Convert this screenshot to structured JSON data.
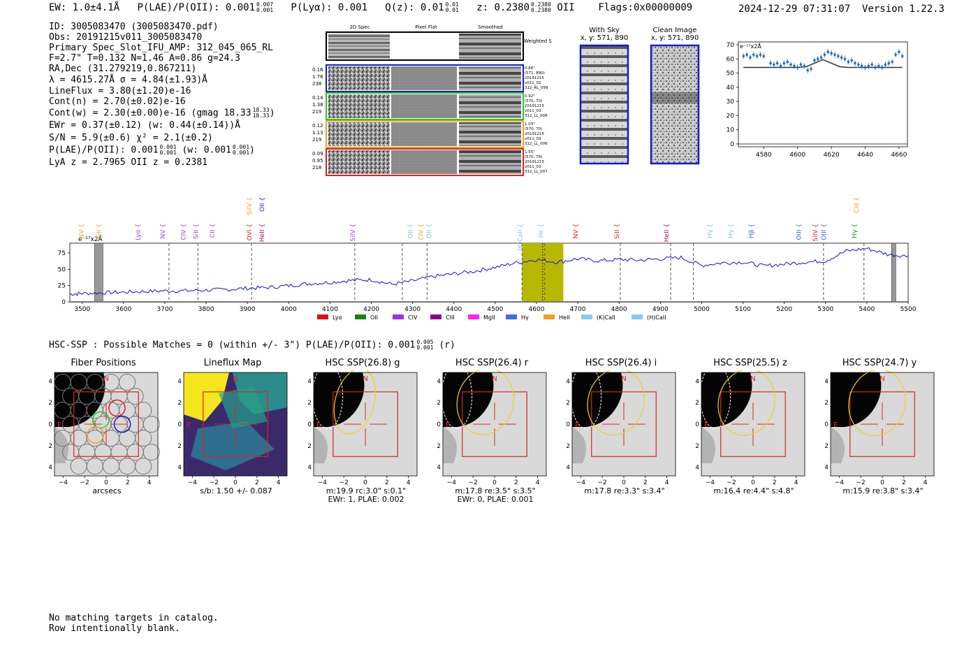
{
  "header": {
    "ew": "EW: 1.0±4.1",
    "ew_unit": "Å",
    "plae_label": "P(LAE)/P(OII): 0.001",
    "plae_hi": "0.007",
    "plae_lo": "0.001",
    "plya": "P(Lyα): 0.001",
    "qz": "Q(z): 0.01",
    "qz_hi": "0.01",
    "qz_lo": "0.01",
    "z": "z: 0.2380",
    "z_hi": "0.2380",
    "z_lo": "0.2380",
    "z_line": "OII",
    "flags": "Flags:0x00000009",
    "timestamp": "2024-12-29 07:31:07",
    "version": "Version 1.22.3"
  },
  "info": {
    "id": "ID: 3005083470 (3005083470.pdf)",
    "obs": "Obs: 20191215v011_3005083470",
    "primary": "Primary Spec_Slot_IFU_AMP: 312_045_065_RL",
    "fparams": "F=2.7\"  T=0.132  N=1.46  A=0.86  g=24.3",
    "radec": "RA,Dec (31.279219,0.867211)",
    "lambda": "λ = 4615.27Å  σ = 4.84(±1.93)Å",
    "lineflux": "LineFlux = 3.80(±1.20)e-16",
    "contn": "Cont(n) = 2.70(±0.02)e-16",
    "contw": "Cont(w) = 2.30(±0.00)e-16 (gmag 18.33",
    "contw_hi": "18.33",
    "contw_lo": "18.33",
    "ewr": "EWr = 0.37(±0.12) (w: 0.44(±0.14))Å",
    "sn": "S/N = 5.9(±0.6)  χ² = 2.1(±0.2)",
    "plae": "P(LAE)/P(OII): 0.001",
    "plae_hi": "0.001",
    "plae_lo": "0.001",
    "plae_w": "(w: 0.001",
    "plae_w_hi": "0.001",
    "plae_w_lo": "0.001",
    "lya_z": "LyA z = 2.7965   OII z = 0.2381"
  },
  "stamps": {
    "col_headers": [
      "2D Spec",
      "Pixel Flat",
      "Smoothed"
    ],
    "weighted_sum": "Weighted Sum",
    "rows": [
      {
        "color": "#1a1acc",
        "left": [
          "0.16",
          "1.76",
          "238"
        ],
        "right": [
          "0.66\"",
          "(571, 890)",
          "20191215",
          "v011_02",
          "312_RL_099"
        ]
      },
      {
        "color": "#22cc22",
        "left": [
          "0.14",
          "1.38",
          "219"
        ],
        "right": [
          "0.92\"",
          "(570, 70)",
          "20191215",
          "v011_03",
          "312_LL_006"
        ]
      },
      {
        "color": "#f0a020",
        "left": [
          "0.12",
          "1.13",
          "219"
        ],
        "right": [
          "1.03\"",
          "(570, 70)",
          "20191215",
          "v011_03",
          "312_LL_006"
        ]
      },
      {
        "color": "#dd2222",
        "left": [
          "0.09",
          "0.95",
          "218"
        ],
        "right": [
          "1.55\"",
          "(570, 79)",
          "20191215",
          "v011_03",
          "312_LL_007"
        ]
      }
    ]
  },
  "sky": {
    "with_sky_title": "With Sky",
    "with_sky_xy": "x, y: 571, 890",
    "clean_title": "Clean Image",
    "clean_xy": "x, y: 571, 890"
  },
  "zoom_plot": {
    "unit": "e⁻¹⁷x2Å",
    "yticks": [
      "70",
      "60",
      "50",
      "40",
      "30",
      "20",
      "10",
      "0"
    ],
    "xticks": [
      "4580",
      "4600",
      "4620",
      "4640",
      "4660"
    ]
  },
  "full_spectrum": {
    "unit": "e⁻¹⁷x2Å",
    "yticks": [
      "75",
      "50",
      "25",
      "0"
    ],
    "xticks": [
      "3500",
      "3600",
      "3700",
      "3800",
      "3900",
      "4000",
      "4100",
      "4200",
      "4300",
      "4400",
      "4500",
      "4600",
      "4700",
      "4800",
      "4900",
      "5000",
      "5100",
      "5200",
      "5300",
      "5400",
      "5500"
    ],
    "lines": [
      {
        "label": "NV",
        "color": "#f0a020",
        "x": 3503,
        "row": 0
      },
      {
        "label": "SiII",
        "color": "#f0a020",
        "x": 3545,
        "row": 0
      },
      {
        "label": "Lyα",
        "color": "#a040e0",
        "x": 3640,
        "row": 0
      },
      {
        "label": "NV",
        "color": "#a040e0",
        "x": 3700,
        "row": 0
      },
      {
        "label": "CIV",
        "color": "#a040e0",
        "x": 3750,
        "row": 0
      },
      {
        "label": "SiII",
        "color": "#a040e0",
        "x": 3780,
        "row": 0
      },
      {
        "label": "CII",
        "color": "#a040e0",
        "x": 3820,
        "row": 0
      },
      {
        "label": "OVI",
        "color": "#dd2222",
        "x": 3910,
        "row": 0
      },
      {
        "label": "SiIV",
        "color": "#f0a020",
        "x": 3910,
        "row": 1
      },
      {
        "label": "OII",
        "color": "#1a1acc",
        "x": 3940,
        "row": 1
      },
      {
        "label": "HeII",
        "color": "#a01060",
        "x": 3940,
        "row": 0
      },
      {
        "label": "SiIV",
        "color": "#a040e0",
        "x": 4160,
        "row": 0
      },
      {
        "label": "OII",
        "color": "#7cc8e8",
        "x": 4300,
        "row": 0
      },
      {
        "label": "CIV",
        "color": "#f0a020",
        "x": 4325,
        "row": 0
      },
      {
        "label": "OII",
        "color": "#7cc8e8",
        "x": 4345,
        "row": 0
      },
      {
        "label": "(K)CaII",
        "color": "#7cc8e8",
        "x": 4565,
        "row": 0
      },
      {
        "label": "Hε",
        "color": "#7cc8e8",
        "x": 4615,
        "row": 0
      },
      {
        "label": "NV",
        "color": "#dd2222",
        "x": 4700,
        "row": 0
      },
      {
        "label": "SiII",
        "color": "#dd2222",
        "x": 4800,
        "row": 0
      },
      {
        "label": "HeII",
        "color": "#a01060",
        "x": 4920,
        "row": 0
      },
      {
        "label": "Hγ",
        "color": "#7cc8e8",
        "x": 5025,
        "row": 0
      },
      {
        "label": "Hγ",
        "color": "#7cc8e8",
        "x": 5075,
        "row": 0
      },
      {
        "label": "Hβ",
        "color": "#4060e0",
        "x": 5125,
        "row": 0
      },
      {
        "label": "OIII",
        "color": "#4060e0",
        "x": 5240,
        "row": 0
      },
      {
        "label": "SiIV",
        "color": "#dd2222",
        "x": 5280,
        "row": 0
      },
      {
        "label": "OIII",
        "color": "#4060e0",
        "x": 5300,
        "row": 0
      },
      {
        "label": "Hγ",
        "color": "#1a8a1a",
        "x": 5375,
        "row": 0
      },
      {
        "label": "CIII",
        "color": "#f0a020",
        "x": 5380,
        "row": 1
      }
    ],
    "legend": [
      {
        "label": "Lyα",
        "color": "#dd1111"
      },
      {
        "label": "OII",
        "color": "#118811"
      },
      {
        "label": "CIV",
        "color": "#9933ee"
      },
      {
        "label": "CIII",
        "color": "#880088"
      },
      {
        "label": "MgII",
        "color": "#ff22ee"
      },
      {
        "label": "Hγ",
        "color": "#4466ee"
      },
      {
        "label": "HeII",
        "color": "#f0a020"
      },
      {
        "label": "(K)CaII",
        "color": "#88ccee"
      },
      {
        "label": "(H)CaII",
        "color": "#88ccee"
      }
    ]
  },
  "hsc": {
    "summary": "HSC-SSP : Possible Matches = 0 (within +/- 3\")  P(LAE)/P(OII): 0.001",
    "summary_hi": "0.005",
    "summary_lo": "0.001",
    "summary_band": "(r)",
    "cutouts": [
      {
        "title": "Fiber Positions",
        "foot1": "arcsecs",
        "foot2": ""
      },
      {
        "title": "Lineflux Map",
        "foot1": "s/b: 1.50 +/- 0.087",
        "foot2": ""
      },
      {
        "title": "HSC SSP(26.8) g",
        "foot1": "m:19.9 rc:3.0\"  s:0.1\"",
        "foot2": "EWr: 1, PLAE: 0.002"
      },
      {
        "title": "HSC SSP(26.4) r",
        "foot1": "m:17.8  re:3.5\"  s:3.5\"",
        "foot2": "EWr: 0, PLAE: 0.001"
      },
      {
        "title": "HSC SSP(26.4) i",
        "foot1": "m:17.8  re:3.3\"  s:3.4\"",
        "foot2": ""
      },
      {
        "title": "HSC SSP(25.5) z",
        "foot1": "m:16.4  re:4.4\"  s:4.8\"",
        "foot2": ""
      },
      {
        "title": "HSC SSP(24.7) y",
        "foot1": "m:15.9  re:3.8\"  s:3.4\"",
        "foot2": ""
      }
    ],
    "axis_ticks": [
      "−4",
      "−2",
      "0",
      "2",
      "4"
    ],
    "north": "N",
    "east": "E"
  },
  "footer": {
    "line1": "No matching targets in catalog.",
    "line2": "Row intentionally blank."
  },
  "chart_data": [
    {
      "type": "scatter",
      "title": "",
      "xlabel": "",
      "ylabel": "e-17 x2Å",
      "xlim": [
        4565,
        4665
      ],
      "ylim": [
        -2,
        72
      ],
      "x": [
        4568,
        4570,
        4572,
        4574,
        4576,
        4578,
        4580,
        4584,
        4586,
        4588,
        4590,
        4592,
        4594,
        4596,
        4598,
        4600,
        4602,
        4604,
        4606,
        4608,
        4610,
        4612,
        4614,
        4616,
        4618,
        4620,
        4622,
        4624,
        4626,
        4628,
        4630,
        4632,
        4634,
        4636,
        4638,
        4640,
        4642,
        4644,
        4646,
        4648,
        4650,
        4652,
        4654,
        4656,
        4658,
        4660,
        4662
      ],
      "y": [
        62,
        63,
        61,
        63,
        62,
        63,
        62,
        57,
        56,
        57,
        55,
        57,
        58,
        56,
        55,
        54,
        56,
        55,
        52,
        53,
        59,
        60,
        61,
        63,
        65,
        64,
        63,
        62,
        61,
        60,
        58,
        59,
        57,
        56,
        55,
        54,
        55,
        56,
        54,
        55,
        54,
        56,
        57,
        58,
        63,
        65,
        62
      ],
      "model_x": [
        4568,
        4580,
        4590,
        4600,
        4605,
        4610,
        4615,
        4620,
        4625,
        4630,
        4640,
        4650,
        4662
      ],
      "model_y": [
        54,
        54,
        54,
        54,
        54.5,
        57,
        59.5,
        57,
        54.5,
        54,
        54,
        54,
        54
      ]
    },
    {
      "type": "line",
      "title": "",
      "xlabel": "",
      "ylabel": "e-17 x2Å",
      "xlim": [
        3470,
        5500
      ],
      "ylim": [
        0,
        90
      ],
      "x": [
        3470,
        3500,
        3550,
        3600,
        3650,
        3700,
        3750,
        3800,
        3850,
        3900,
        3950,
        4000,
        4050,
        4100,
        4150,
        4200,
        4250,
        4300,
        4350,
        4400,
        4450,
        4500,
        4550,
        4600,
        4650,
        4700,
        4750,
        4800,
        4850,
        4900,
        4950,
        5000,
        5050,
        5100,
        5150,
        5200,
        5250,
        5300,
        5350,
        5400,
        5450,
        5500
      ],
      "values": [
        12,
        13,
        14,
        15,
        16,
        17,
        17,
        18,
        19,
        21,
        22,
        25,
        28,
        30,
        33,
        34,
        27,
        32,
        39,
        43,
        47,
        53,
        60,
        65,
        61,
        66,
        63,
        65,
        64,
        66,
        68,
        56,
        60,
        61,
        55,
        58,
        61,
        63,
        78,
        82,
        73,
        70
      ],
      "highlight_band": [
        4565,
        4665
      ],
      "marker": 4615,
      "masked": [
        [
          3530,
          3550
        ],
        [
          5460,
          5470
        ]
      ],
      "vlines": [
        3710,
        3780,
        3910,
        4160,
        4275,
        4335,
        4565,
        4620,
        4803,
        4925,
        4980,
        5295,
        5393
      ]
    }
  ]
}
